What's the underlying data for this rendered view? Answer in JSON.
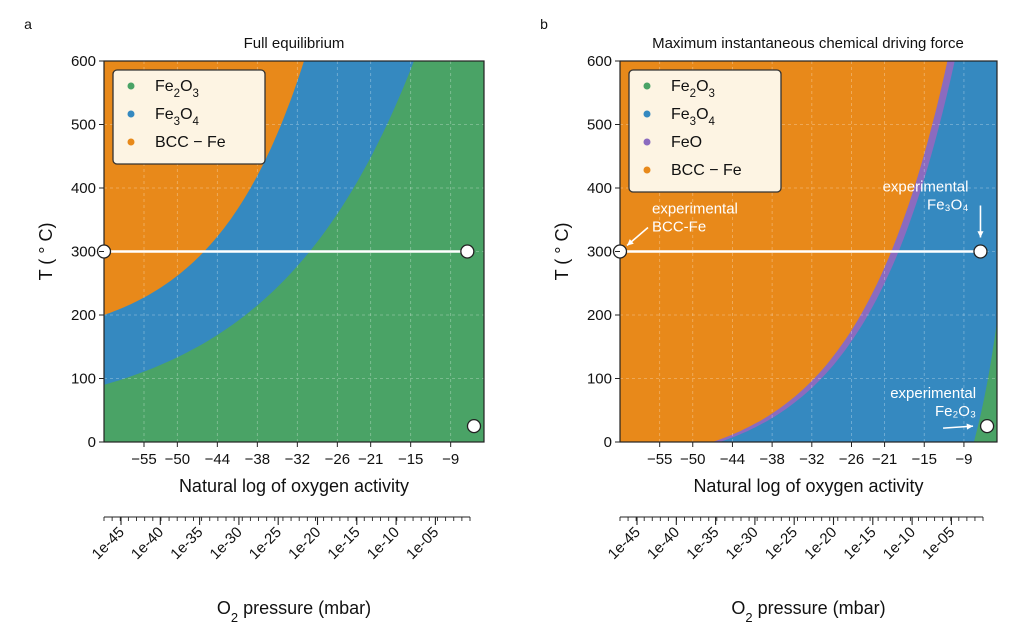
{
  "figure": {
    "panel_letters": [
      "a",
      "b"
    ]
  },
  "chart_data": [
    {
      "type": "heatmap",
      "title": "Full equilibrium",
      "xlabel": "Natural log of oxygen activity",
      "ylabel": "T ( ° C)",
      "xlim": [
        -61,
        -4
      ],
      "ylim": [
        0,
        600
      ],
      "x_ticks": [
        -55,
        -50,
        -44,
        -38,
        -32,
        -26,
        -21,
        -15,
        -9
      ],
      "y_ticks": [
        0,
        100,
        200,
        300,
        400,
        500,
        600
      ],
      "grid": true,
      "legend_position": "top-left",
      "legend": [
        {
          "base": "Fe",
          "sub1": "2",
          "mid": "O",
          "sub2": "3",
          "color": "#4aa366"
        },
        {
          "base": "Fe",
          "sub1": "3",
          "mid": "O",
          "sub2": "4",
          "color": "#3589c0"
        },
        {
          "base": "BCC − Fe",
          "sub1": "",
          "mid": "",
          "sub2": "",
          "color": "#e8891a"
        }
      ],
      "regions": [
        {
          "phase": "BCC − Fe",
          "color": "#e8891a"
        },
        {
          "phase": "Fe3O4",
          "color": "#3589c0",
          "boundary_T0": [
            -61,
            200
          ],
          "boundary_T600": [
            -31,
            600
          ]
        },
        {
          "phase": "Fe2O3",
          "color": "#4aa366",
          "boundary_T0": [
            -61,
            90
          ],
          "boundary_T600": [
            -14.5,
            600
          ]
        }
      ],
      "isotherm": {
        "T": 300,
        "x_start": -61,
        "x_end": -6.5
      },
      "points": [
        {
          "x": -61,
          "y": 300
        },
        {
          "x": -6.5,
          "y": 300
        },
        {
          "x": -5.5,
          "y": 25
        }
      ],
      "secondary_axis": {
        "label_base": "O",
        "label_sub": "2",
        "label_rest": " pressure (mbar)",
        "tick_labels": [
          "1e-45",
          "1e-40",
          "1e-35",
          "1e-30",
          "1e-25",
          "1e-20",
          "1e-15",
          "1e-10",
          "1e-05"
        ]
      }
    },
    {
      "type": "heatmap",
      "title": "Maximum instantaneous chemical driving force",
      "xlabel": "Natural log of oxygen activity",
      "ylabel": "T ( ° C)",
      "xlim": [
        -61,
        -4
      ],
      "ylim": [
        0,
        600
      ],
      "x_ticks": [
        -55,
        -50,
        -44,
        -38,
        -32,
        -26,
        -21,
        -15,
        -9
      ],
      "y_ticks": [
        0,
        100,
        200,
        300,
        400,
        500,
        600
      ],
      "grid": true,
      "legend_position": "top-left",
      "legend": [
        {
          "base": "Fe",
          "sub1": "2",
          "mid": "O",
          "sub2": "3",
          "color": "#4aa366"
        },
        {
          "base": "Fe",
          "sub1": "3",
          "mid": "O",
          "sub2": "4",
          "color": "#3589c0"
        },
        {
          "base": "FeO",
          "sub1": "",
          "mid": "",
          "sub2": "",
          "color": "#8b6bbf"
        },
        {
          "base": "BCC − Fe",
          "sub1": "",
          "mid": "",
          "sub2": "",
          "color": "#e8891a"
        }
      ],
      "regions": [
        {
          "phase": "BCC − Fe",
          "color": "#e8891a"
        },
        {
          "phase": "Fe3O4",
          "color": "#3589c0",
          "boundary_T0": [
            -47,
            0
          ],
          "boundary_T600": [
            -11.5,
            600
          ]
        },
        {
          "phase": "FeO",
          "color": "#8b6bbf"
        },
        {
          "phase": "Fe2O3",
          "color": "#4aa366",
          "boundary_T0": [
            -7.5,
            0
          ],
          "boundary_T600": [
            -4,
            190
          ]
        }
      ],
      "isotherm": {
        "T": 300,
        "x_start": -61,
        "x_end": -6.5
      },
      "points": [
        {
          "x": -61,
          "y": 300
        },
        {
          "x": -6.5,
          "y": 300
        },
        {
          "x": -5.5,
          "y": 25
        }
      ],
      "annotations": [
        {
          "lines": [
            "experimental",
            "BCC-Fe"
          ],
          "target": {
            "x": -61,
            "y": 300
          }
        },
        {
          "lines": [
            "experimental",
            "Fe₃O₄"
          ],
          "target": {
            "x": -6.5,
            "y": 300
          }
        },
        {
          "lines": [
            "experimental",
            "Fe₂O₃"
          ],
          "target": {
            "x": -5.5,
            "y": 25
          }
        }
      ],
      "secondary_axis": {
        "label_base": "O",
        "label_sub": "2",
        "label_rest": " pressure (mbar)",
        "tick_labels": [
          "1e-45",
          "1e-40",
          "1e-35",
          "1e-30",
          "1e-25",
          "1e-20",
          "1e-15",
          "1e-10",
          "1e-05"
        ]
      }
    }
  ]
}
